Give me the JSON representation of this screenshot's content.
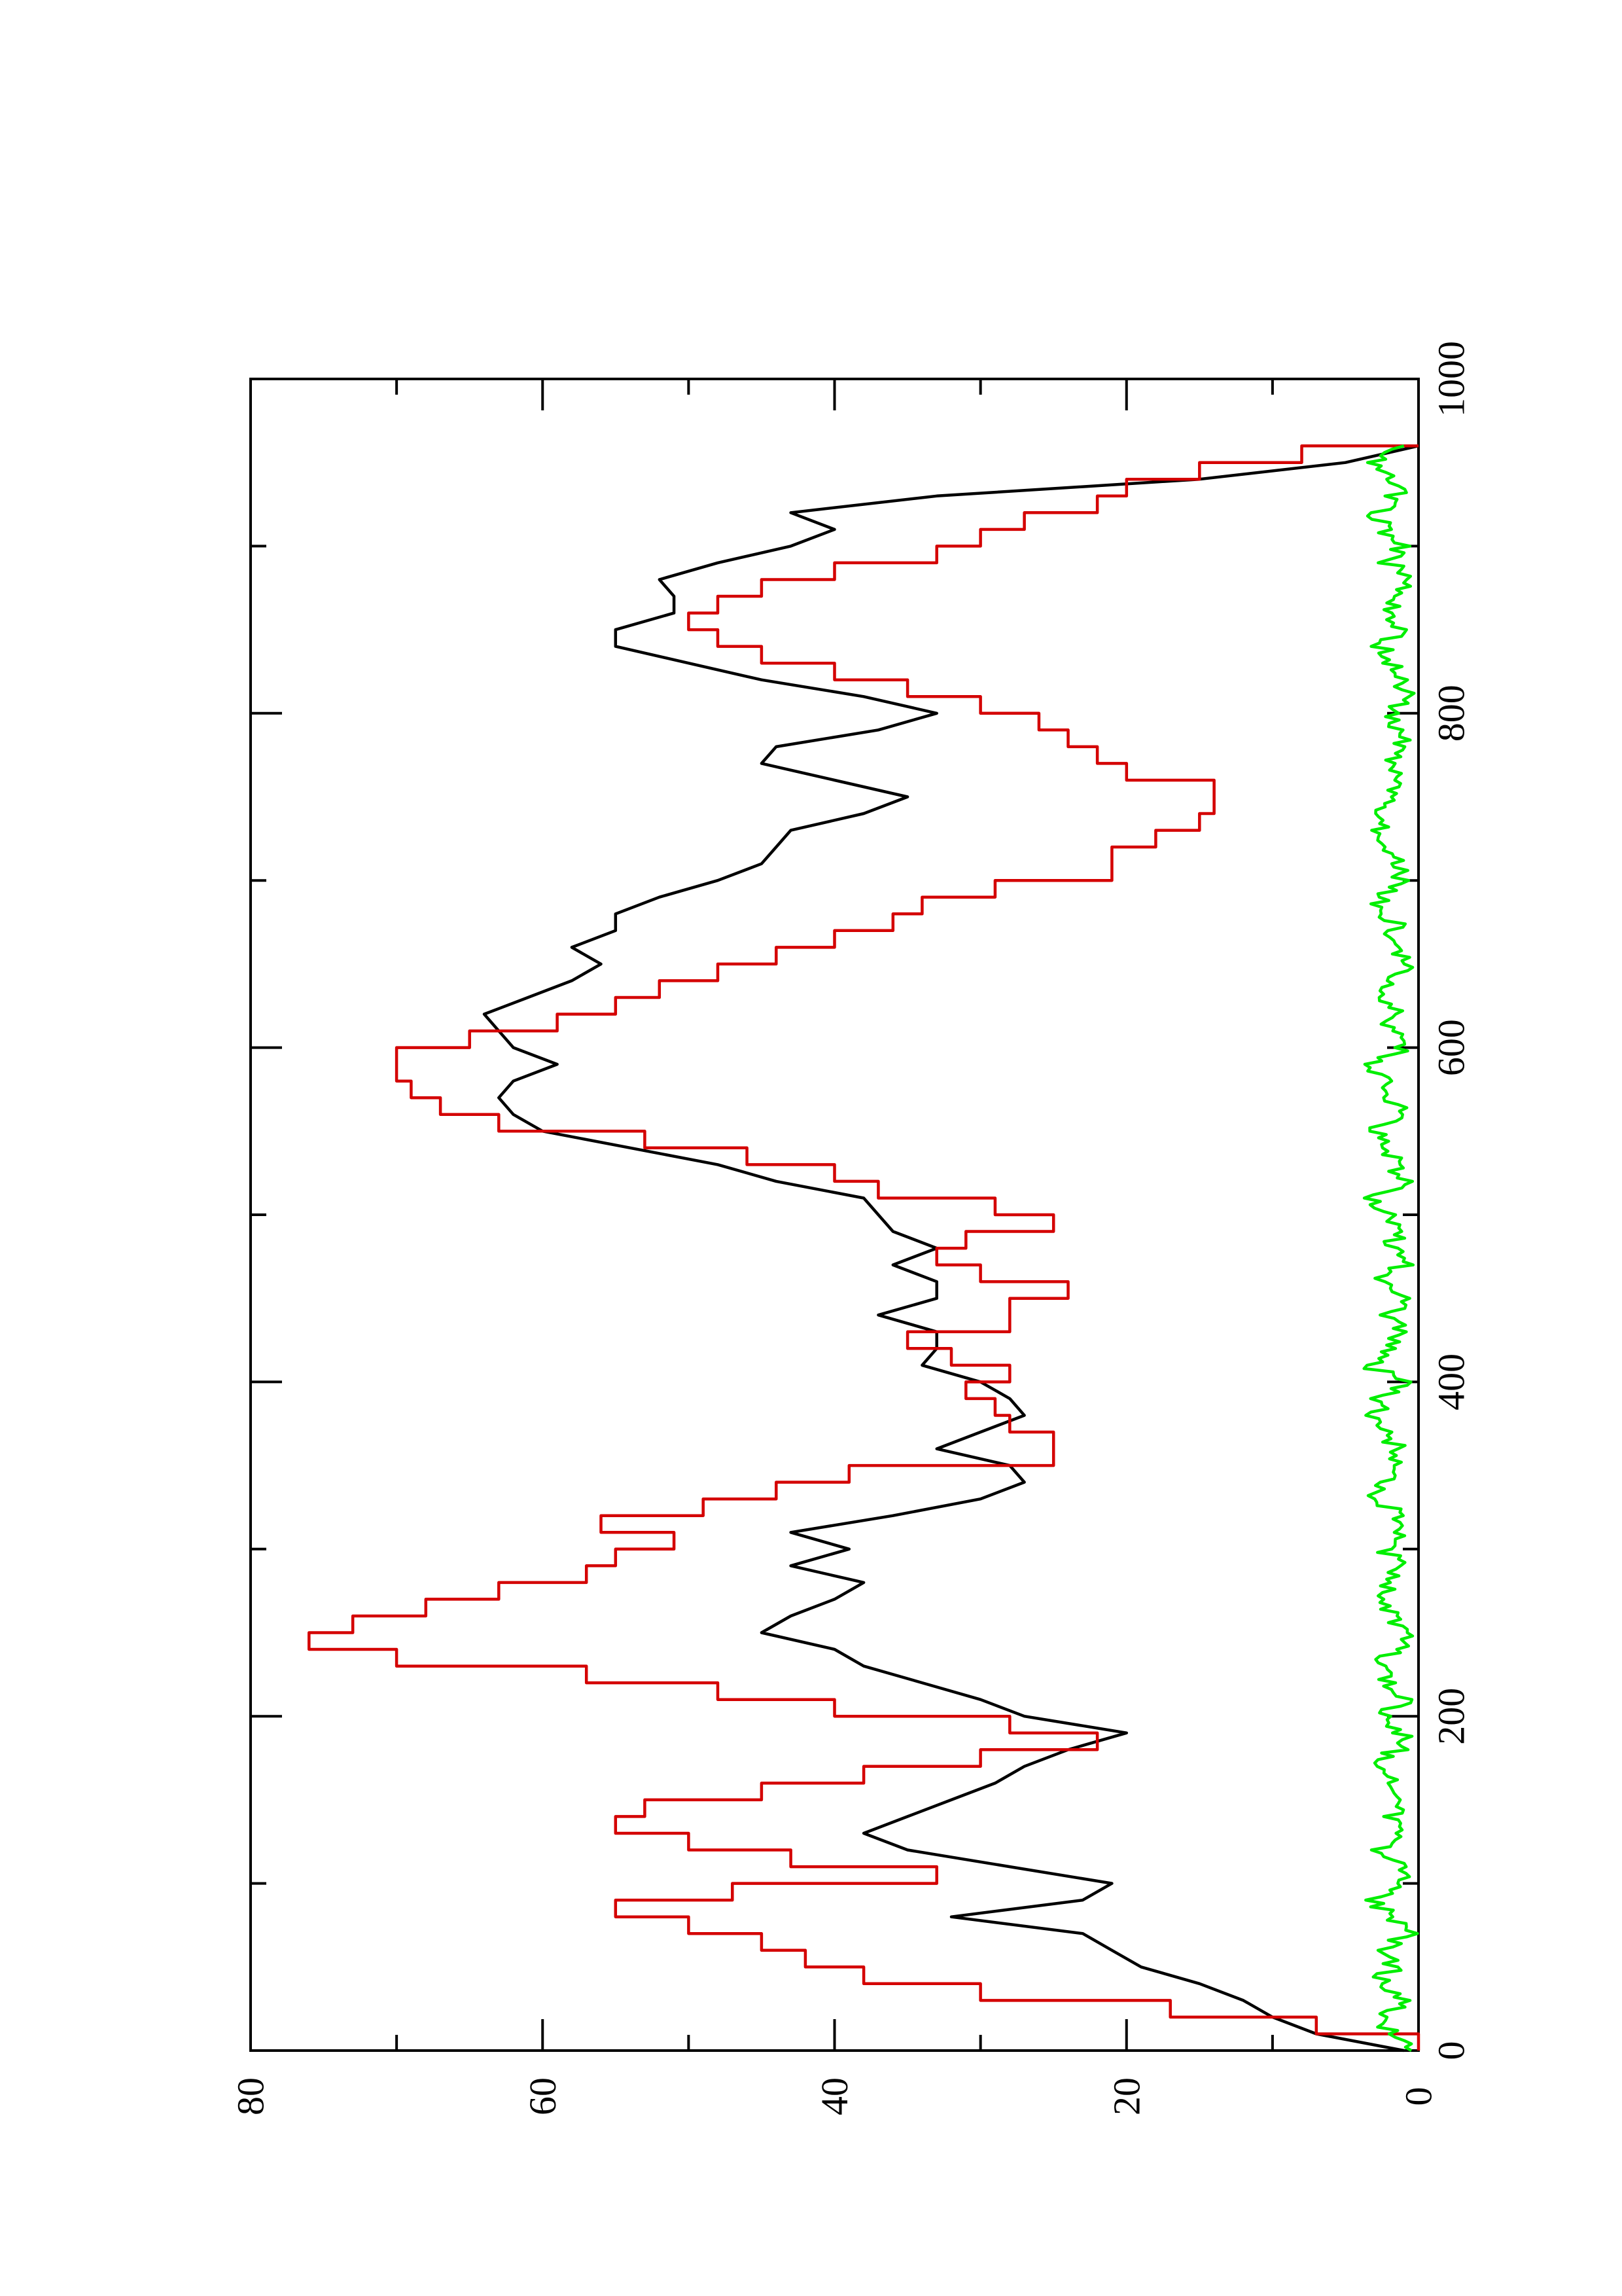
{
  "chart_data": {
    "type": "line",
    "orientation": "rotated-90-ccw",
    "title": "",
    "xlabel": "",
    "ylabel": "",
    "xlim": [
      0,
      1000
    ],
    "ylim": [
      0,
      80
    ],
    "x_ticks": [
      0,
      200,
      400,
      600,
      800,
      1000
    ],
    "x_minor_ticks": [
      100,
      300,
      500,
      700,
      900
    ],
    "y_ticks": [
      0,
      20,
      40,
      60,
      80
    ],
    "y_minor_ticks": [
      10,
      30,
      50,
      70
    ],
    "grid": false,
    "legend": "none",
    "series": [
      {
        "color": "#000000",
        "kind": "smooth",
        "x": [
          0,
          10,
          20,
          30,
          40,
          50,
          60,
          70,
          80,
          90,
          100,
          110,
          120,
          130,
          140,
          150,
          160,
          170,
          180,
          190,
          200,
          210,
          220,
          230,
          240,
          250,
          260,
          270,
          280,
          290,
          300,
          310,
          320,
          330,
          340,
          350,
          360,
          370,
          380,
          390,
          400,
          410,
          420,
          430,
          440,
          450,
          460,
          470,
          480,
          490,
          500,
          510,
          520,
          530,
          540,
          550,
          560,
          570,
          580,
          590,
          600,
          610,
          620,
          630,
          640,
          650,
          660,
          670,
          680,
          690,
          700,
          710,
          720,
          730,
          740,
          750,
          760,
          770,
          780,
          790,
          800,
          810,
          820,
          830,
          840,
          850,
          860,
          870,
          880,
          890,
          900,
          910,
          920,
          930,
          940,
          950,
          960
        ],
        "y": [
          1,
          7,
          10,
          12,
          15,
          19,
          21,
          23,
          32,
          23,
          21,
          28,
          35,
          38,
          35,
          32,
          29,
          27,
          24,
          20,
          27,
          30,
          34,
          38,
          40,
          45,
          43,
          40,
          38,
          43,
          39,
          43,
          36,
          30,
          27,
          28,
          33,
          30,
          27,
          28,
          30,
          34,
          33,
          33,
          37,
          33,
          33,
          36,
          33,
          36,
          37,
          38,
          44,
          48,
          54,
          60,
          62,
          63,
          62,
          59,
          62,
          63,
          64,
          61,
          58,
          56,
          58,
          55,
          55,
          52,
          48,
          45,
          44,
          43,
          38,
          35,
          40,
          45,
          44,
          37,
          33,
          38,
          45,
          50,
          55,
          55,
          51,
          51,
          52,
          48,
          43,
          40,
          43,
          33,
          15,
          5,
          0
        ]
      },
      {
        "color": "#d40000",
        "kind": "step",
        "x": [
          0,
          10,
          20,
          30,
          40,
          50,
          60,
          70,
          80,
          90,
          100,
          110,
          120,
          130,
          140,
          150,
          160,
          170,
          180,
          190,
          200,
          210,
          220,
          230,
          240,
          250,
          260,
          270,
          280,
          290,
          300,
          310,
          320,
          330,
          340,
          350,
          360,
          370,
          380,
          390,
          400,
          410,
          420,
          430,
          440,
          450,
          460,
          470,
          480,
          490,
          500,
          510,
          520,
          530,
          540,
          550,
          560,
          570,
          580,
          590,
          600,
          610,
          620,
          630,
          640,
          650,
          660,
          670,
          680,
          690,
          700,
          710,
          720,
          730,
          740,
          750,
          760,
          770,
          780,
          790,
          800,
          810,
          820,
          830,
          840,
          850,
          860,
          870,
          880,
          890,
          900,
          910,
          920,
          930,
          940,
          950,
          960
        ],
        "y": [
          0,
          7,
          17,
          30,
          38,
          42,
          45,
          50,
          55,
          47,
          33,
          43,
          50,
          55,
          53,
          45,
          38,
          30,
          22,
          28,
          40,
          48,
          57,
          70,
          76,
          73,
          68,
          63,
          57,
          55,
          51,
          56,
          49,
          44,
          39,
          25,
          25,
          28,
          29,
          31,
          28,
          32,
          35,
          28,
          28,
          24,
          30,
          33,
          31,
          25,
          29,
          37,
          40,
          46,
          53,
          63,
          67,
          69,
          70,
          70,
          65,
          59,
          55,
          52,
          48,
          44,
          40,
          36,
          34,
          29,
          21,
          21,
          18,
          15,
          14,
          14,
          20,
          22,
          24,
          26,
          30,
          35,
          40,
          45,
          48,
          50,
          48,
          45,
          40,
          33,
          30,
          27,
          22,
          20,
          15,
          8,
          0
        ]
      },
      {
        "color": "#00ee00",
        "kind": "noise",
        "x": [
          0,
          10,
          20,
          30,
          40,
          50,
          60,
          70,
          80,
          90,
          100,
          110,
          120,
          130,
          140,
          150,
          160,
          170,
          180,
          190,
          200,
          210,
          220,
          230,
          240,
          250,
          260,
          270,
          280,
          290,
          300,
          310,
          320,
          330,
          340,
          350,
          360,
          370,
          380,
          390,
          400,
          410,
          420,
          430,
          440,
          450,
          460,
          470,
          480,
          490,
          500,
          510,
          520,
          530,
          540,
          550,
          560,
          570,
          580,
          590,
          600,
          610,
          620,
          630,
          640,
          650,
          660,
          670,
          680,
          690,
          700,
          710,
          720,
          730,
          740,
          750,
          760,
          770,
          780,
          790,
          800,
          810,
          820,
          830,
          840,
          850,
          860,
          870,
          880,
          890,
          900,
          910,
          920,
          930,
          940,
          950,
          960
        ],
        "y": [
          0.5,
          2,
          2.5,
          1,
          3,
          1.5,
          2.5,
          0.5,
          2,
          3,
          1,
          1.5,
          2.5,
          1,
          2,
          0.5,
          2,
          3,
          1.5,
          1,
          2.5,
          1,
          2,
          3,
          1.5,
          1,
          2,
          3,
          2,
          1,
          2.5,
          1.5,
          1,
          3,
          2,
          1,
          1.5,
          2,
          3,
          2.5,
          1,
          3.5,
          2,
          1,
          2,
          1,
          3,
          1,
          2,
          1.5,
          2,
          3,
          1,
          1.5,
          2,
          3,
          1,
          2,
          2.5,
          3,
          1,
          2,
          1.5,
          3,
          2,
          1,
          2,
          1.5,
          2,
          3,
          1,
          1.5,
          3,
          2.5,
          3.5,
          2,
          1,
          2,
          1,
          1.5,
          2,
          1,
          1.5,
          2,
          2.5,
          1,
          2,
          1.5,
          1,
          2,
          1,
          2.5,
          3,
          1.5,
          2,
          3.5,
          1
        ]
      }
    ]
  }
}
